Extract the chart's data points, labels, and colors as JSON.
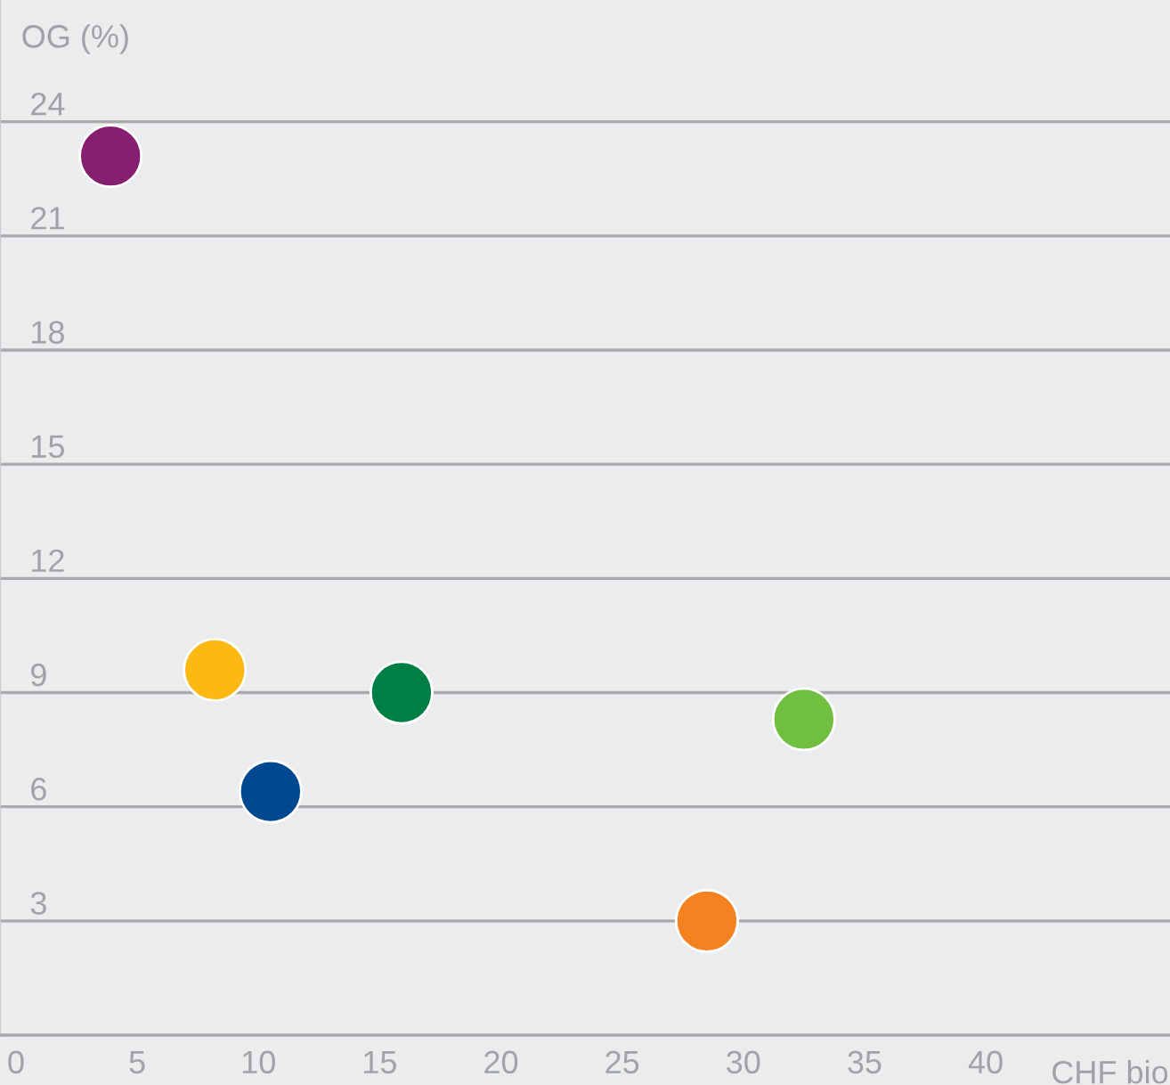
{
  "chart_data": {
    "type": "scatter",
    "xlabel": "CHF bio",
    "ylabel": "OG (%)",
    "xlim": [
      -0.66,
      47.6
    ],
    "xticks": [
      0,
      5,
      10,
      15,
      20,
      25,
      30,
      35,
      40
    ],
    "ylim": [
      0,
      27.2
    ],
    "yticks": [
      3,
      6,
      9,
      12,
      15,
      18,
      21,
      24
    ],
    "grid": "y",
    "marker": "circle",
    "series": [
      {
        "x": [
          3.9
        ],
        "values": [
          23.1
        ],
        "color": "#861f70"
      },
      {
        "x": [
          8.2
        ],
        "values": [
          9.6
        ],
        "color": "#fdb913"
      },
      {
        "x": [
          10.5
        ],
        "values": [
          6.4
        ],
        "color": "#004990"
      },
      {
        "x": [
          15.9
        ],
        "values": [
          9.0
        ],
        "color": "#007f45"
      },
      {
        "x": [
          32.5
        ],
        "values": [
          8.3
        ],
        "color": "#70bf41"
      },
      {
        "x": [
          28.5
        ],
        "values": [
          3.0
        ],
        "color": "#f58220"
      }
    ]
  }
}
